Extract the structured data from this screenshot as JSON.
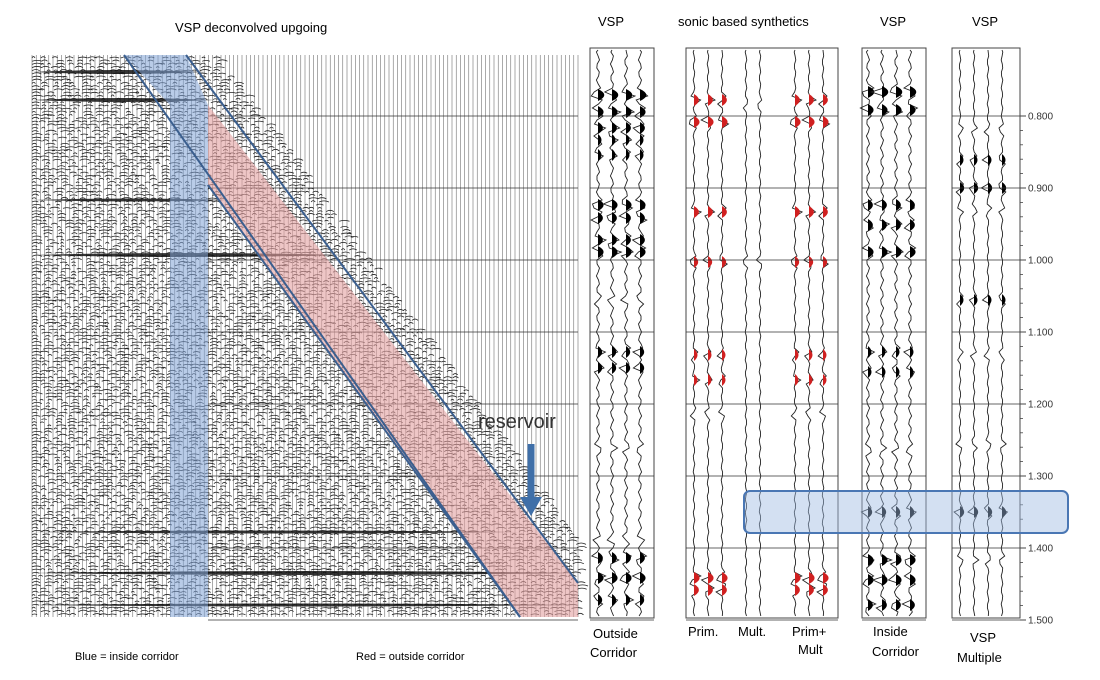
{
  "titles": {
    "left": "VSP deconvolved upgoing",
    "vsp1": "VSP",
    "synth": "sonic based synthetics",
    "vsp2": "VSP",
    "vsp3": "VSP"
  },
  "annotation": {
    "reservoir": "reservoir"
  },
  "time_axis": {
    "ticks": [
      "0.800",
      "0.900",
      "1.000",
      "1.100",
      "1.200",
      "1.300",
      "1.400",
      "1.500"
    ]
  },
  "bottom_labels": {
    "outside_1": "Outside",
    "outside_2": "Corridor",
    "prim": "Prim.",
    "mult": "Mult.",
    "primmult_1": "Prim+",
    "primmult_2": "Mult",
    "inside_1": "Inside",
    "inside_2": "Corridor",
    "vspmult_1": "VSP",
    "vspmult_2": "Multiple"
  },
  "legend": {
    "blue": "Blue = inside corridor",
    "red": "Red = outside corridor"
  },
  "colors": {
    "inside_corridor": "#7fa3d6",
    "outside_corridor": "#e3a0a0",
    "corridor_outline": "#3b5f8f",
    "peak_fill": "#000000",
    "synthetic_peak_fill": "#d02020",
    "highlight_box": "#4a77b4"
  }
}
